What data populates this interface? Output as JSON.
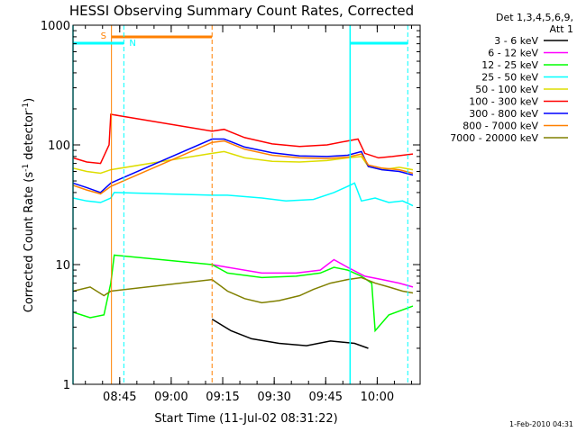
{
  "chart_data": {
    "type": "line",
    "title": "HESSI Observing Summary Count Rates, Corrected",
    "xlabel": "Start Time (11-Jul-02 08:31:22)",
    "ylabel_main": "Corrected Count Rate (s",
    "ylabel_sup1": "-1",
    "ylabel_mid": " detector",
    "ylabel_sup2": "-1",
    "ylabel_end": ")",
    "y_scale": "log",
    "ylim": [
      1,
      1000
    ],
    "xlim_minutes": [
      0,
      101.1
    ],
    "x_tick_labels": [
      "08:45",
      "09:00",
      "09:15",
      "09:30",
      "09:45",
      "10:00"
    ],
    "x_tick_minutes": [
      13.6,
      28.6,
      43.6,
      58.6,
      73.6,
      88.6
    ],
    "y_tick_labels": [
      "1",
      "10",
      "100",
      "1000"
    ],
    "y_tick_values": [
      1,
      10,
      100,
      1000
    ],
    "footer_date": "1-Feb-2010 04:31",
    "legend": {
      "placement": "right",
      "header_line1": "Det 1,3,4,5,6,9,",
      "header_line2": "Att 1",
      "entries": [
        {
          "label": "3 - 6 keV",
          "color": "#000000"
        },
        {
          "label": "6 - 12 keV",
          "color": "#ff00ff"
        },
        {
          "label": "12 - 25 keV",
          "color": "#00ff00"
        },
        {
          "label": "25 - 50 keV",
          "color": "#00ffff"
        },
        {
          "label": "50 - 100 keV",
          "color": "#dddd00"
        },
        {
          "label": "100 - 300 keV",
          "color": "#ff0000"
        },
        {
          "label": "300 - 800 keV",
          "color": "#0000ff"
        },
        {
          "label": "800 - 7000 keV",
          "color": "#ff8000"
        },
        {
          "label": "7000 - 20000 keV",
          "color": "#808000"
        }
      ]
    },
    "flags": {
      "saa_label": "S",
      "night_label": "N",
      "saa_color": "#ff8000",
      "night_color": "#00ffff",
      "saa_intervals": [
        [
          11.2,
          40.5
        ]
      ],
      "night_intervals": [
        [
          0,
          14.8
        ],
        [
          80.7,
          97.5
        ]
      ]
    },
    "series": [
      {
        "color": "#000000",
        "points": [
          [
            40.5,
            3.5
          ],
          [
            46,
            2.8
          ],
          [
            52,
            2.4
          ],
          [
            60,
            2.2
          ],
          [
            68,
            2.1
          ],
          [
            75,
            2.3
          ],
          [
            82,
            2.2
          ],
          [
            86,
            2.0
          ]
        ]
      },
      {
        "color": "#ff00ff",
        "points": [
          [
            40.5,
            10
          ],
          [
            45,
            9.5
          ],
          [
            55,
            8.5
          ],
          [
            65,
            8.5
          ],
          [
            72,
            9.0
          ],
          [
            76,
            11
          ],
          [
            80,
            9.5
          ],
          [
            85,
            8.0
          ],
          [
            90,
            7.5
          ],
          [
            95,
            7.0
          ],
          [
            99,
            6.5
          ]
        ]
      },
      {
        "color": "#00ff00",
        "points": [
          [
            0,
            4
          ],
          [
            5,
            3.6
          ],
          [
            9,
            3.8
          ],
          [
            11,
            7
          ],
          [
            12,
            12
          ],
          [
            40.5,
            10
          ],
          [
            45,
            8.5
          ],
          [
            55,
            7.8
          ],
          [
            65,
            8
          ],
          [
            72,
            8.5
          ],
          [
            76,
            9.5
          ],
          [
            80,
            9
          ],
          [
            84,
            8
          ],
          [
            87,
            7
          ],
          [
            88,
            2.8
          ],
          [
            92,
            3.8
          ],
          [
            99,
            4.5
          ]
        ]
      },
      {
        "color": "#00ffff",
        "points": [
          [
            0,
            36
          ],
          [
            4,
            34
          ],
          [
            8,
            33
          ],
          [
            11,
            36
          ],
          [
            12,
            40
          ],
          [
            40.5,
            38
          ],
          [
            45,
            38
          ],
          [
            55,
            36
          ],
          [
            62,
            34
          ],
          [
            70,
            35
          ],
          [
            76,
            40
          ],
          [
            80,
            45
          ],
          [
            82,
            48
          ],
          [
            84,
            34
          ],
          [
            88,
            36
          ],
          [
            92,
            33
          ],
          [
            96,
            34
          ],
          [
            99,
            31
          ]
        ]
      },
      {
        "color": "#dddd00",
        "points": [
          [
            0,
            64
          ],
          [
            4,
            60
          ],
          [
            8,
            58
          ],
          [
            11,
            62
          ],
          [
            40.5,
            85
          ],
          [
            44,
            88
          ],
          [
            50,
            78
          ],
          [
            58,
            73
          ],
          [
            66,
            72
          ],
          [
            74,
            74
          ],
          [
            80,
            78
          ],
          [
            84,
            80
          ],
          [
            86,
            66
          ],
          [
            90,
            62
          ],
          [
            95,
            65
          ],
          [
            99,
            62
          ]
        ]
      },
      {
        "color": "#ff0000",
        "points": [
          [
            0,
            78
          ],
          [
            4,
            72
          ],
          [
            8,
            70
          ],
          [
            10.5,
            100
          ],
          [
            11,
            180
          ],
          [
            40.5,
            130
          ],
          [
            44,
            135
          ],
          [
            50,
            115
          ],
          [
            58,
            102
          ],
          [
            66,
            97
          ],
          [
            74,
            100
          ],
          [
            80,
            108
          ],
          [
            83,
            112
          ],
          [
            85,
            85
          ],
          [
            89,
            78
          ],
          [
            93,
            80
          ],
          [
            99,
            84
          ]
        ]
      },
      {
        "color": "#0000ff",
        "points": [
          [
            0,
            48
          ],
          [
            4,
            44
          ],
          [
            8,
            40
          ],
          [
            11,
            48
          ],
          [
            40.5,
            112
          ],
          [
            44,
            112
          ],
          [
            50,
            96
          ],
          [
            58,
            86
          ],
          [
            66,
            81
          ],
          [
            74,
            80
          ],
          [
            80,
            82
          ],
          [
            84,
            88
          ],
          [
            86,
            66
          ],
          [
            90,
            62
          ],
          [
            95,
            60
          ],
          [
            99,
            56
          ]
        ]
      },
      {
        "color": "#ff8000",
        "points": [
          [
            0,
            46
          ],
          [
            4,
            42
          ],
          [
            8,
            39
          ],
          [
            11,
            45
          ],
          [
            40.5,
            105
          ],
          [
            44,
            108
          ],
          [
            50,
            92
          ],
          [
            58,
            82
          ],
          [
            66,
            78
          ],
          [
            74,
            77
          ],
          [
            80,
            79
          ],
          [
            84,
            84
          ],
          [
            86,
            68
          ],
          [
            90,
            64
          ],
          [
            95,
            62
          ],
          [
            99,
            58
          ]
        ]
      },
      {
        "color": "#808000",
        "points": [
          [
            0,
            6
          ],
          [
            5,
            6.5
          ],
          [
            9,
            5.5
          ],
          [
            11,
            6
          ],
          [
            40.5,
            7.5
          ],
          [
            45,
            6.0
          ],
          [
            50,
            5.2
          ],
          [
            55,
            4.8
          ],
          [
            60,
            5.0
          ],
          [
            66,
            5.5
          ],
          [
            70,
            6.2
          ],
          [
            75,
            7.0
          ],
          [
            80,
            7.5
          ],
          [
            84,
            7.8
          ],
          [
            88,
            7.0
          ],
          [
            92,
            6.5
          ],
          [
            96,
            6.0
          ],
          [
            99,
            5.8
          ]
        ]
      }
    ]
  }
}
